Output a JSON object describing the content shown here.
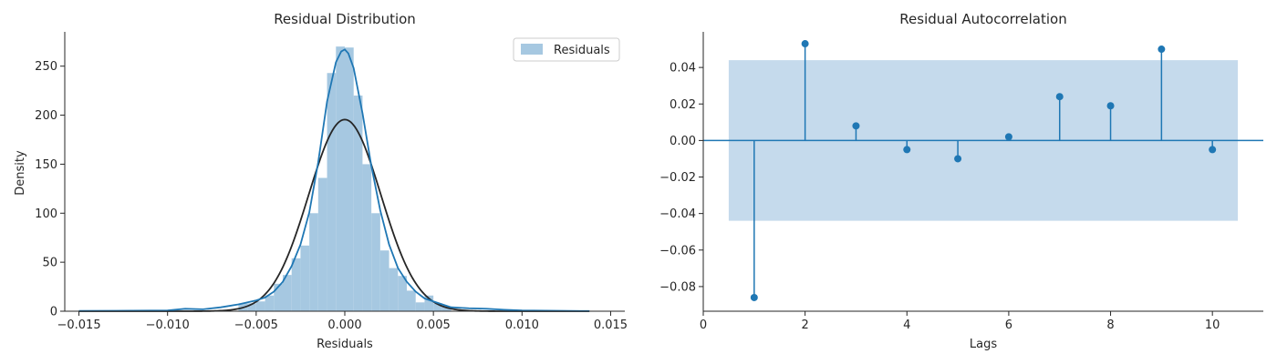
{
  "chart_data": [
    {
      "type": "bar",
      "title": "Residual Distribution",
      "xlabel": "Residuals",
      "ylabel": "Density",
      "xlim": [
        -0.0158,
        0.0158
      ],
      "ylim": [
        0,
        285
      ],
      "xticks": [
        -0.015,
        -0.01,
        -0.005,
        0.0,
        0.005,
        0.01,
        0.015
      ],
      "xtick_labels": [
        "−0.015",
        "−0.010",
        "−0.005",
        "0.000",
        "0.005",
        "0.010",
        "0.015"
      ],
      "yticks": [
        0,
        50,
        100,
        150,
        200,
        250
      ],
      "yticks_labels": [
        "0",
        "50",
        "100",
        "150",
        "200",
        "250"
      ],
      "legend": {
        "entries": [
          "Residuals"
        ],
        "placement": "top-right"
      },
      "grid": false,
      "histogram": {
        "bin_edges": [
          -0.006,
          -0.0055,
          -0.005,
          -0.0045,
          -0.004,
          -0.0035,
          -0.003,
          -0.0025,
          -0.002,
          -0.0015,
          -0.001,
          -0.0005,
          0.0,
          0.0005,
          0.001,
          0.0015,
          0.002,
          0.0025,
          0.003,
          0.0035,
          0.004,
          0.0045,
          0.005,
          0.0055,
          0.006
        ],
        "densities": [
          8,
          8,
          10,
          16,
          28,
          37,
          54,
          67,
          100,
          136,
          243,
          270,
          269,
          220,
          150,
          100,
          62,
          44,
          36,
          21,
          9,
          16,
          8,
          5
        ],
        "color": "#a6c8e1"
      },
      "kde": {
        "x": [
          -0.015,
          -0.012,
          -0.01,
          -0.009,
          -0.008,
          -0.007,
          -0.006,
          -0.005,
          -0.0045,
          -0.004,
          -0.0035,
          -0.003,
          -0.0025,
          -0.002,
          -0.0015,
          -0.001,
          -0.0005,
          -0.0002,
          0.0,
          0.0002,
          0.0005,
          0.001,
          0.0015,
          0.002,
          0.0025,
          0.003,
          0.0035,
          0.004,
          0.0045,
          0.005,
          0.0055,
          0.006,
          0.007,
          0.008,
          0.009,
          0.01,
          0.012,
          0.0138
        ],
        "y": [
          0.3,
          0.5,
          0.8,
          2.5,
          2,
          4,
          7,
          11,
          14,
          20,
          30,
          46,
          68,
          101,
          152,
          214,
          254,
          265,
          267,
          263,
          248,
          202,
          148,
          103,
          68,
          44,
          30,
          20,
          13,
          10,
          7,
          4,
          3,
          2.5,
          1.5,
          0.8,
          0.4,
          0.2
        ],
        "color": "#1f77b4"
      },
      "normal_fit": {
        "mean": 0.0,
        "std": 0.00204,
        "x_range": [
          -0.015,
          0.0138
        ],
        "color": "#262626"
      }
    },
    {
      "type": "stem",
      "title": "Residual Autocorrelation",
      "xlabel": "Lags",
      "ylabel": "",
      "xlim": [
        0,
        11
      ],
      "ylim": [
        -0.0935,
        0.0595
      ],
      "xticks": [
        0,
        2,
        4,
        6,
        8,
        10
      ],
      "xtick_labels": [
        "0",
        "2",
        "4",
        "6",
        "8",
        "10"
      ],
      "yticks": [
        -0.08,
        -0.06,
        -0.04,
        -0.02,
        0.0,
        0.02,
        0.04
      ],
      "ytick_labels": [
        "−0.08",
        "−0.06",
        "−0.04",
        "−0.02",
        "0.00",
        "0.02",
        "0.04"
      ],
      "grid": false,
      "lags": [
        1,
        2,
        3,
        4,
        5,
        6,
        7,
        8,
        9,
        10
      ],
      "acf": [
        -0.086,
        0.053,
        0.008,
        -0.005,
        -0.01,
        0.002,
        0.024,
        0.019,
        0.05,
        -0.005
      ],
      "confidence_band": {
        "x": [
          0.5,
          10.5
        ],
        "upper": 0.044,
        "lower": -0.044,
        "color": "#c5daec"
      },
      "color": "#1f77b4"
    }
  ]
}
